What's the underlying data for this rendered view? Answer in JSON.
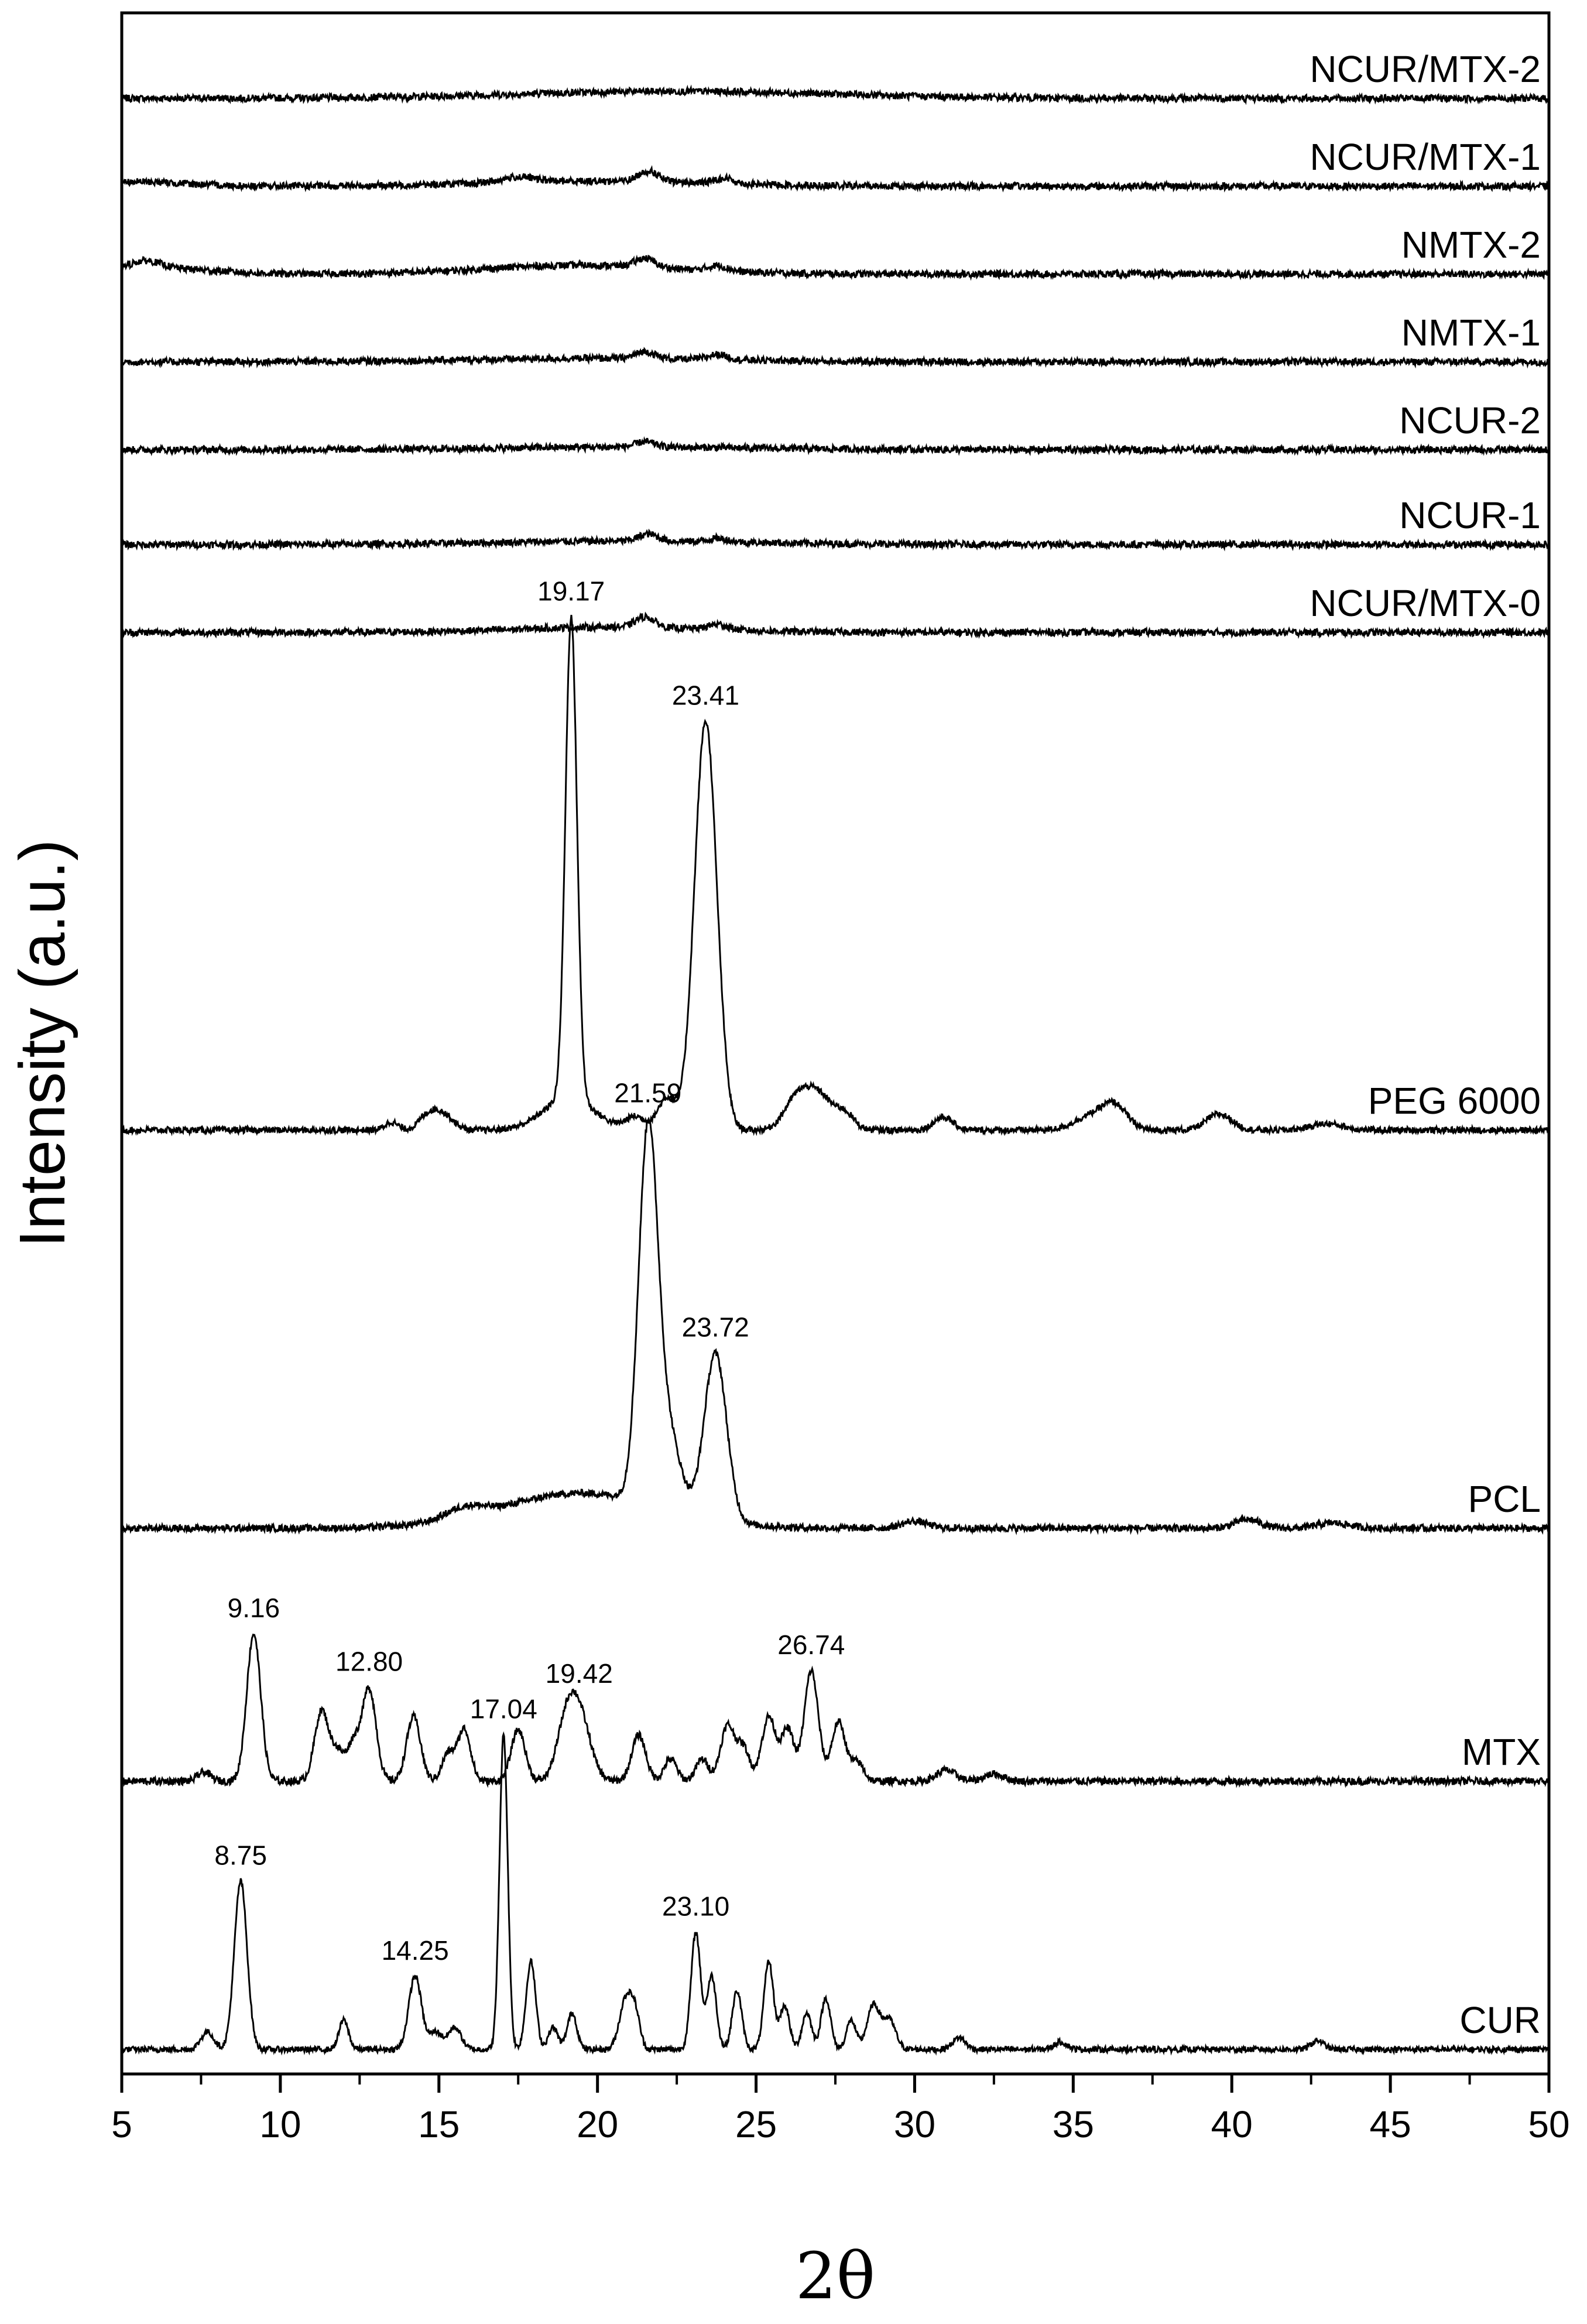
{
  "chart_data": {
    "type": "line",
    "title": "",
    "xlabel": "2θ",
    "ylabel": "Intensity (a.u.)",
    "xlim": [
      5,
      50
    ],
    "x_ticks": [
      5,
      10,
      15,
      20,
      25,
      30,
      35,
      40,
      45,
      50
    ],
    "y_ticks_labeled": false,
    "grid": false,
    "legend": "none",
    "colors": {
      "line": "#000000",
      "axis": "#000000",
      "background": "#ffffff"
    },
    "series": [
      {
        "name": "NCUR/MTX-2",
        "peaks": [
          [
            22.5,
            4.0,
            5.0
          ]
        ],
        "annotations": []
      },
      {
        "name": "NCUR/MTX-1",
        "peaks": [
          [
            5.5,
            2.5,
            1.5
          ],
          [
            17.5,
            3.0,
            0.5
          ],
          [
            20.0,
            3.0,
            3.5
          ],
          [
            21.6,
            6.0,
            0.3
          ],
          [
            24.0,
            3.0,
            0.3
          ]
        ],
        "annotations": []
      },
      {
        "name": "NMTX-2",
        "peaks": [
          [
            5.7,
            5.0,
            0.5
          ],
          [
            6.5,
            3.0,
            1.5
          ],
          [
            19.5,
            5.0,
            3.0
          ],
          [
            21.5,
            5.0,
            0.3
          ],
          [
            23.8,
            3.0,
            0.3
          ]
        ],
        "annotations": []
      },
      {
        "name": "NMTX-1",
        "peaks": [
          [
            20.0,
            2.0,
            4.0
          ],
          [
            21.5,
            4.0,
            0.3
          ],
          [
            23.8,
            3.0,
            0.3
          ]
        ],
        "annotations": []
      },
      {
        "name": "NCUR-2",
        "peaks": [
          [
            21.0,
            1.5,
            4.0
          ],
          [
            21.5,
            3.0,
            0.3
          ]
        ],
        "annotations": []
      },
      {
        "name": "NCUR-1",
        "peaks": [
          [
            21.0,
            2.0,
            4.0
          ],
          [
            21.6,
            4.0,
            0.3
          ],
          [
            23.8,
            2.0,
            0.3
          ]
        ],
        "annotations": []
      },
      {
        "name": "NCUR/MTX-0",
        "peaks": [
          [
            20.5,
            3.0,
            3.0
          ],
          [
            21.5,
            6.0,
            0.3
          ],
          [
            23.8,
            3.0,
            0.3
          ]
        ],
        "annotations": []
      },
      {
        "name": "PEG 6000",
        "peaks": [
          [
            13.5,
            5,
            0.2
          ],
          [
            14.7,
            10,
            0.3
          ],
          [
            15.2,
            8,
            0.3
          ],
          [
            19.17,
            300,
            0.18
          ],
          [
            19.1,
            20,
            0.8
          ],
          [
            21.2,
            8,
            0.3
          ],
          [
            22.2,
            20,
            0.3
          ],
          [
            23.41,
            255,
            0.35
          ],
          [
            26.3,
            20,
            0.4
          ],
          [
            27.0,
            20,
            0.4
          ],
          [
            27.8,
            10,
            0.3
          ],
          [
            30.9,
            8,
            0.3
          ],
          [
            35.5,
            8,
            0.5
          ],
          [
            36.3,
            15,
            0.4
          ],
          [
            39.6,
            10,
            0.4
          ],
          [
            43.0,
            4,
            0.5
          ]
        ],
        "annotations": [
          {
            "x": 19.17,
            "label": "19.17"
          },
          {
            "x": 23.41,
            "label": "23.41"
          }
        ]
      },
      {
        "name": "PCL",
        "peaks": [
          [
            15.8,
            6,
            0.6
          ],
          [
            19.5,
            20,
            2.5
          ],
          [
            21.59,
            205,
            0.3
          ],
          [
            22.2,
            45,
            0.4
          ],
          [
            23.72,
            95,
            0.35
          ],
          [
            30.0,
            4,
            0.4
          ],
          [
            40.5,
            5,
            0.4
          ],
          [
            43.2,
            3,
            0.5
          ]
        ],
        "annotations": [
          {
            "x": 21.59,
            "label": "21.59"
          },
          {
            "x": 23.72,
            "label": "23.72"
          }
        ]
      },
      {
        "name": "MTX",
        "peaks": [
          [
            7.6,
            5,
            0.2
          ],
          [
            9.16,
            80,
            0.22
          ],
          [
            11.3,
            38,
            0.22
          ],
          [
            11.8,
            15,
            0.2
          ],
          [
            12.3,
            20,
            0.2
          ],
          [
            12.8,
            50,
            0.22
          ],
          [
            14.2,
            35,
            0.22
          ],
          [
            15.3,
            15,
            0.2
          ],
          [
            15.8,
            28,
            0.2
          ],
          [
            17.5,
            28,
            0.22
          ],
          [
            19.42,
            35,
            0.35
          ],
          [
            19.0,
            25,
            0.3
          ],
          [
            21.3,
            25,
            0.22
          ],
          [
            22.3,
            12,
            0.2
          ],
          [
            23.3,
            12,
            0.2
          ],
          [
            24.1,
            30,
            0.22
          ],
          [
            24.6,
            18,
            0.2
          ],
          [
            25.4,
            35,
            0.22
          ],
          [
            26.0,
            28,
            0.2
          ],
          [
            26.74,
            60,
            0.22
          ],
          [
            27.6,
            32,
            0.22
          ],
          [
            28.2,
            10,
            0.2
          ],
          [
            31.0,
            6,
            0.3
          ],
          [
            32.5,
            4,
            0.3
          ]
        ],
        "annotations": [
          {
            "x": 9.16,
            "label": "9.16"
          },
          {
            "x": 12.8,
            "label": "12.80"
          },
          {
            "x": 19.42,
            "label": "19.42"
          },
          {
            "x": 26.74,
            "label": "26.74"
          }
        ]
      },
      {
        "name": "CUR",
        "peaks": [
          [
            7.7,
            12,
            0.2
          ],
          [
            8.75,
            115,
            0.2
          ],
          [
            12.0,
            20,
            0.15
          ],
          [
            14.25,
            50,
            0.2
          ],
          [
            14.9,
            12,
            0.2
          ],
          [
            15.5,
            15,
            0.2
          ],
          [
            17.04,
            215,
            0.13
          ],
          [
            17.9,
            60,
            0.15
          ],
          [
            18.6,
            15,
            0.15
          ],
          [
            19.2,
            25,
            0.15
          ],
          [
            20.9,
            35,
            0.2
          ],
          [
            21.2,
            20,
            0.15
          ],
          [
            23.1,
            80,
            0.15
          ],
          [
            23.6,
            50,
            0.15
          ],
          [
            24.4,
            40,
            0.15
          ],
          [
            25.4,
            60,
            0.15
          ],
          [
            25.9,
            30,
            0.15
          ],
          [
            26.6,
            25,
            0.15
          ],
          [
            27.2,
            35,
            0.15
          ],
          [
            28.0,
            20,
            0.15
          ],
          [
            28.7,
            30,
            0.2
          ],
          [
            29.2,
            20,
            0.2
          ],
          [
            31.4,
            8,
            0.2
          ],
          [
            34.6,
            5,
            0.2
          ],
          [
            42.7,
            6,
            0.2
          ]
        ],
        "annotations": [
          {
            "x": 8.75,
            "label": "8.75"
          },
          {
            "x": 14.25,
            "label": "14.25"
          },
          {
            "x": 17.04,
            "label": "17.04"
          },
          {
            "x": 23.1,
            "label": "23.10"
          }
        ]
      }
    ]
  }
}
